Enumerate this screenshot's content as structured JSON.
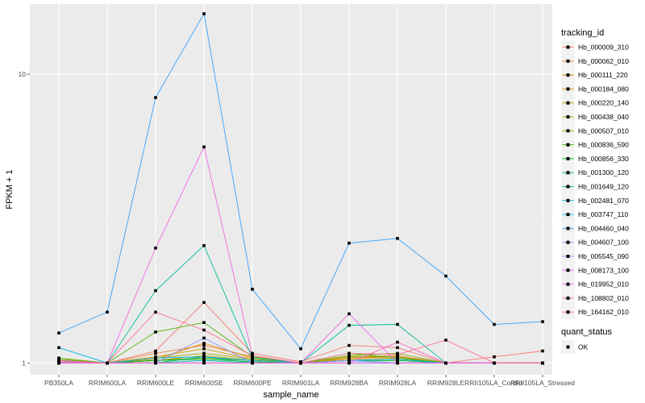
{
  "chart_data": {
    "type": "line",
    "title": "",
    "xlabel": "sample_name",
    "ylabel": "FPKM + 1",
    "y_scale": "log10",
    "y_ticks": [
      1,
      10
    ],
    "y_tick_labels": [
      "1",
      "10"
    ],
    "ylim": [
      0.91,
      17.5
    ],
    "grid": true,
    "legend_position": "right",
    "categories": [
      "PB350LA",
      "RRIM600LA",
      "RRIM600LE",
      "RRIM600SE",
      "RRIM600PE",
      "RRIM901LA",
      "RRIM928BA",
      "RRIM928LA",
      "RRIM928LE",
      "RRII105LA_Control",
      "RRII105LA_Stressed"
    ],
    "legend_color_title": "tracking_id",
    "legend_shape_title": "quant_status",
    "point_status_label": "OK",
    "series": [
      {
        "name": "Hb_000009_310",
        "color": "#F8766D",
        "values": [
          1.02,
          1.0,
          1.1,
          1.62,
          1.08,
          1.01,
          1.15,
          1.13,
          1.0,
          1.05,
          1.1
        ]
      },
      {
        "name": "Hb_000062_010",
        "color": "#EC823C",
        "values": [
          1.0,
          1.0,
          1.08,
          1.15,
          1.05,
          1.0,
          1.05,
          1.06,
          1.0,
          1.0,
          1.0
        ]
      },
      {
        "name": "Hb_000111_220",
        "color": "#DD8D00",
        "values": [
          1.0,
          1.0,
          1.03,
          1.17,
          1.04,
          1.0,
          1.04,
          1.05,
          1.0,
          1.0,
          1.0
        ]
      },
      {
        "name": "Hb_000184_080",
        "color": "#CB9700",
        "values": [
          1.01,
          1.0,
          1.05,
          1.12,
          1.03,
          1.0,
          1.03,
          1.04,
          1.0,
          1.0,
          1.0
        ]
      },
      {
        "name": "Hb_000220_140",
        "color": "#B5A000",
        "values": [
          1.02,
          1.0,
          1.02,
          1.06,
          1.02,
          1.0,
          1.02,
          1.03,
          1.0,
          1.0,
          1.0
        ]
      },
      {
        "name": "Hb_000438_040",
        "color": "#9CA700",
        "values": [
          1.01,
          1.0,
          1.04,
          1.08,
          1.03,
          1.0,
          1.05,
          1.05,
          1.0,
          1.0,
          1.0
        ]
      },
      {
        "name": "Hb_000507_010",
        "color": "#7CAE00",
        "values": [
          1.04,
          1.0,
          1.02,
          1.04,
          1.02,
          1.0,
          1.06,
          1.08,
          1.0,
          1.0,
          1.0
        ]
      },
      {
        "name": "Hb_000836_590",
        "color": "#4BB400",
        "values": [
          1.03,
          1.0,
          1.28,
          1.38,
          1.05,
          1.0,
          1.08,
          1.04,
          1.0,
          1.0,
          1.0
        ]
      },
      {
        "name": "Hb_000856_330",
        "color": "#00B81F",
        "values": [
          1.01,
          1.0,
          1.02,
          1.03,
          1.01,
          1.0,
          1.02,
          1.02,
          1.0,
          1.0,
          1.0
        ]
      },
      {
        "name": "Hb_001300_120",
        "color": "#00BC56",
        "values": [
          1.0,
          1.0,
          1.0,
          1.05,
          1.0,
          1.0,
          1.02,
          1.0,
          1.0,
          1.0,
          1.0
        ]
      },
      {
        "name": "Hb_001649_120",
        "color": "#00BE9B",
        "values": [
          1.02,
          1.0,
          1.78,
          2.55,
          1.04,
          1.0,
          1.35,
          1.36,
          1.0,
          1.0,
          1.0
        ]
      },
      {
        "name": "Hb_002481_070",
        "color": "#00BFC4",
        "values": [
          1.0,
          1.0,
          1.0,
          1.02,
          1.0,
          1.0,
          1.0,
          1.0,
          1.0,
          1.0,
          1.0
        ]
      },
      {
        "name": "Hb_003747_110",
        "color": "#00B4EF",
        "values": [
          1.13,
          1.0,
          1.04,
          1.05,
          1.02,
          1.0,
          1.02,
          1.03,
          1.0,
          1.0,
          1.0
        ]
      },
      {
        "name": "Hb_004460_040",
        "color": "#35A2FF",
        "values": [
          1.27,
          1.5,
          8.3,
          16.2,
          1.8,
          1.12,
          2.6,
          2.7,
          2.0,
          1.36,
          1.39
        ]
      },
      {
        "name": "Hb_004607_100",
        "color": "#8B93FF",
        "values": [
          1.0,
          1.0,
          1.0,
          1.22,
          1.0,
          1.0,
          1.02,
          1.0,
          1.0,
          1.0,
          1.0
        ]
      },
      {
        "name": "Hb_005545_090",
        "color": "#C77CFF",
        "values": [
          1.0,
          1.0,
          1.0,
          1.0,
          1.0,
          1.0,
          1.0,
          1.0,
          1.0,
          1.0,
          1.0
        ]
      },
      {
        "name": "Hb_008173_100",
        "color": "#E36EF6",
        "values": [
          1.0,
          1.0,
          1.0,
          1.0,
          1.0,
          1.0,
          1.0,
          1.0,
          1.0,
          1.0,
          1.0
        ]
      },
      {
        "name": "Hb_019952_010",
        "color": "#F564E3",
        "values": [
          1.01,
          1.0,
          2.5,
          5.6,
          1.06,
          1.0,
          1.48,
          1.0,
          1.0,
          1.0,
          1.0
        ]
      },
      {
        "name": "Hb_108802_010",
        "color": "#FF61C3",
        "values": [
          1.0,
          1.0,
          1.0,
          1.0,
          1.0,
          1.0,
          1.0,
          1.18,
          1.0,
          1.0,
          1.0
        ]
      },
      {
        "name": "Hb_164162_010",
        "color": "#FF6C90",
        "values": [
          1.02,
          1.0,
          1.5,
          1.3,
          1.06,
          1.0,
          1.08,
          1.07,
          1.2,
          1.0,
          1.0
        ]
      }
    ]
  }
}
